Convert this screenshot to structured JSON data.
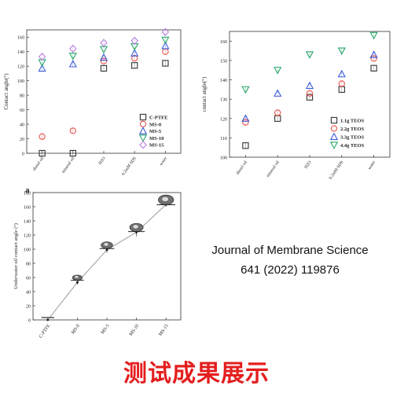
{
  "chart_data": [
    {
      "id": "panel-top-left",
      "type": "scatter",
      "ylabel": "Contact angle(°)",
      "xlabel": "",
      "categories": [
        "diesel oil",
        "mineral oil",
        "H2O",
        "0.2mM SDS",
        "water"
      ],
      "ylim": [
        0,
        170
      ],
      "yticks": [
        0,
        20,
        40,
        60,
        80,
        100,
        120,
        140,
        160
      ],
      "legend_position": "bottom-right",
      "series": [
        {
          "name": "C-PTFE",
          "color": "#333333",
          "marker": "square",
          "values": [
            0,
            0,
            117,
            121,
            124
          ]
        },
        {
          "name": "MS-0",
          "color": "#e8534d",
          "marker": "circle",
          "values": [
            23,
            31,
            127,
            131,
            140
          ]
        },
        {
          "name": "MS-5",
          "color": "#3c5cd6",
          "marker": "triangle-up",
          "values": [
            117,
            123,
            132,
            138,
            148
          ]
        },
        {
          "name": "MS-10",
          "color": "#2aa76a",
          "marker": "triangle-down",
          "values": [
            125,
            134,
            143,
            147,
            156
          ]
        },
        {
          "name": "MS-15",
          "color": "#b97fe0",
          "marker": "diamond",
          "values": [
            133,
            144,
            152,
            155,
            167
          ]
        }
      ]
    },
    {
      "id": "panel-top-right",
      "type": "scatter",
      "ylabel": "contact angle(°)",
      "xlabel": "",
      "categories": [
        "diesel oil",
        "mineral oil",
        "H2O",
        "0.2mM SDS",
        "water"
      ],
      "ylim": [
        100,
        165
      ],
      "yticks": [
        100,
        110,
        120,
        130,
        140,
        150,
        160
      ],
      "legend_position": "bottom-right",
      "series": [
        {
          "name": "1.1g TEOS",
          "color": "#333333",
          "marker": "square",
          "values": [
            106,
            120,
            131,
            135,
            146
          ]
        },
        {
          "name": "2.2g TEOS",
          "color": "#e8534d",
          "marker": "circle",
          "values": [
            118,
            123,
            133,
            138,
            151
          ]
        },
        {
          "name": "3.3g TEOS",
          "color": "#3c5cd6",
          "marker": "triangle-up",
          "values": [
            120,
            133,
            137,
            143,
            153
          ]
        },
        {
          "name": "4.4g TEOS",
          "color": "#2aa76a",
          "marker": "triangle-down",
          "values": [
            135,
            145,
            153,
            155,
            163
          ]
        }
      ]
    },
    {
      "id": "panel-bottom-left",
      "type": "line",
      "panel_label": "a",
      "ylabel": "Underwater oil contact angle (°)",
      "xlabel": "",
      "categories": [
        "C-PTFE",
        "MS-0",
        "MS-5",
        "MS-10",
        "MS-15"
      ],
      "ylim": [
        0,
        180
      ],
      "yticks": [
        0,
        20,
        40,
        60,
        80,
        100,
        120,
        140,
        160,
        180
      ],
      "series": [
        {
          "name": "",
          "color": "#9a9a9a",
          "values": [
            0,
            53,
            99,
            124,
            163
          ],
          "errors": [
            0,
            3,
            4,
            6,
            3
          ]
        }
      ]
    }
  ],
  "citation": {
    "line1": "Journal of Membrane Science",
    "line2": "641 (2022) 119876"
  },
  "caption": "测试成果展示"
}
